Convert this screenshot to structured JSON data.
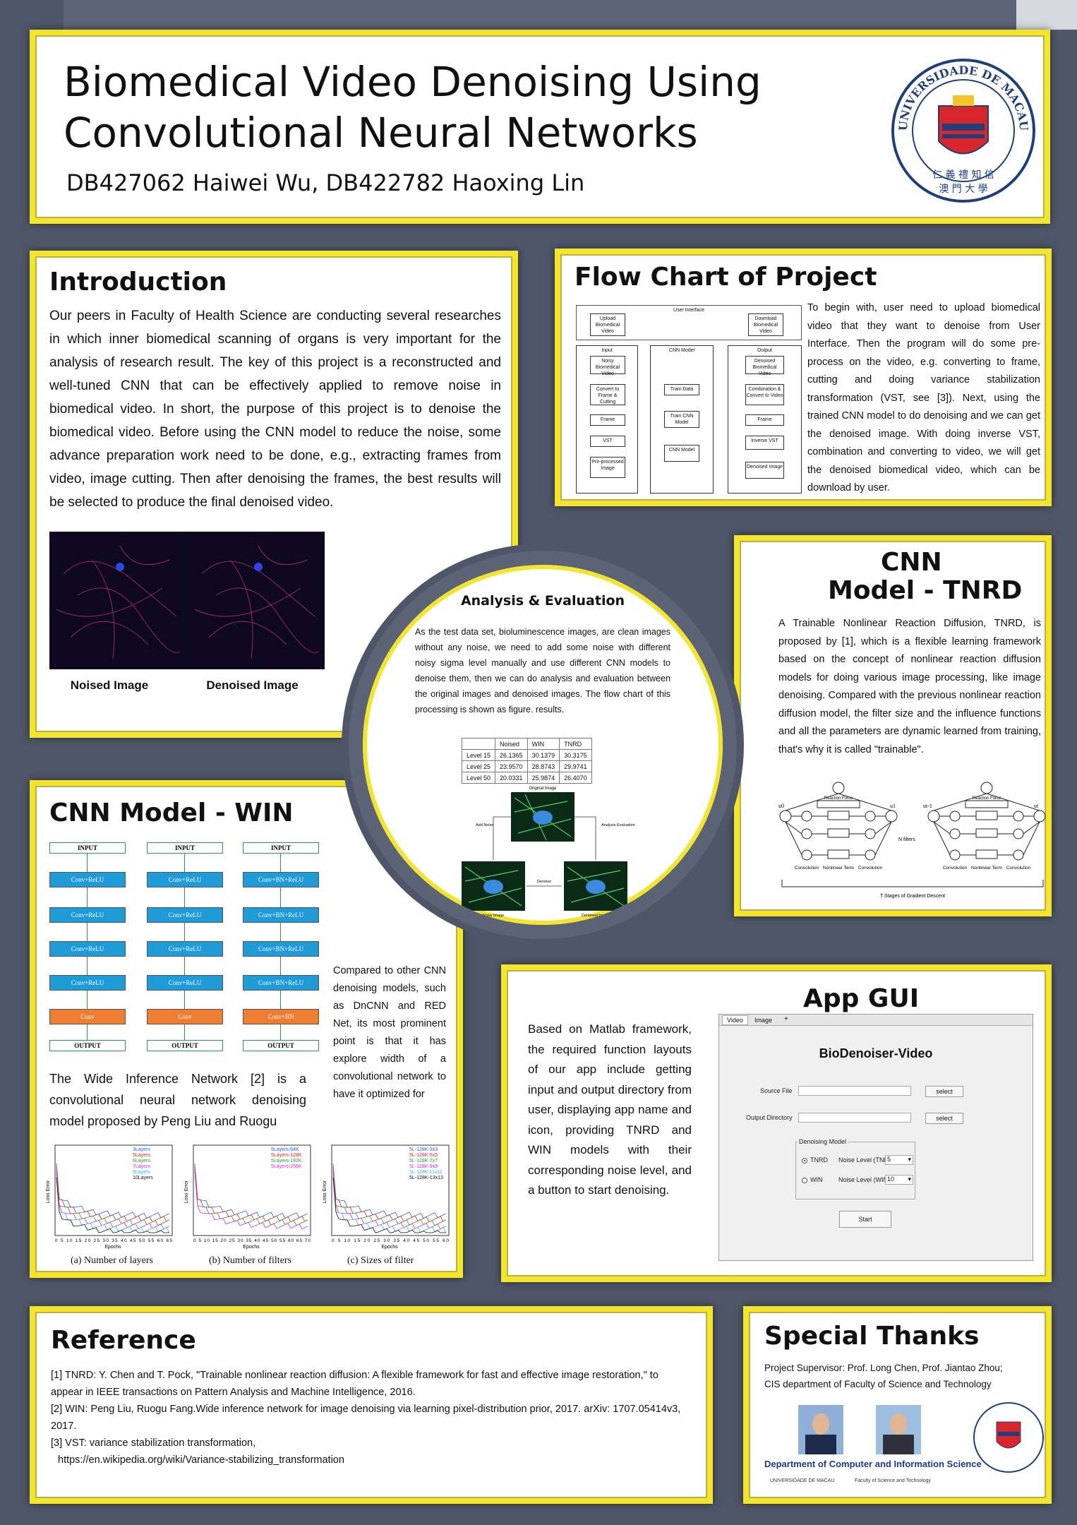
{
  "header": {
    "title_line1": "Biomedical Video Denoising Using",
    "title_line2": "Convolutional Neural Networks",
    "authors": "DB427062 Haiwei Wu, DB422782 Haoxing Lin",
    "logo_text_top": "UNIVERSIDADE DE MACAU",
    "logo_text_bottom": "澳 門 大 學",
    "logo_motto": "仁 義 禮 知 信"
  },
  "intro": {
    "heading": "Introduction",
    "text": "Our peers in Faculty of Health Science are conducting several researches in which inner biomedical scanning of organs is very important for the analysis of research result. The key of this project is a reconstructed and well-tuned CNN that can be effectively applied to remove noise in biomedical video. In short, the purpose of this project is to denoise the biomedical video. Before using the CNN model to reduce the noise, some advance preparation work need to be done, e.g., extracting frames from video, image cutting. Then after denoising the frames, the best results will be selected to produce the final denoised video.",
    "caption_noised": "Noised Image",
    "caption_denoised": "Denoised Image"
  },
  "flow": {
    "heading": "Flow Chart of Project",
    "text": "To begin with, user need to upload biomedical video that they want to denoise from User Interface. Then the program will do some pre-process on the video, e.g. converting to frame, cutting and doing variance stabilization transformation (VST, see [3]). Next, using the trained CNN model to do denoising and we can get the denoised image. With doing inverse VST, combination and converting to video, we will get the denoised biomedical video, which can be download by user.",
    "diagram": {
      "ui": "User Interface",
      "upload": "Upload Biomedical Video",
      "download": "Download Biomedical Video",
      "input": "Input",
      "cnn": "CNN Model",
      "output": "Output",
      "noisy": "Noisy Biomedical Video",
      "convert": "Convert to Frame & Cutting",
      "frame": "Frame",
      "vst": "VST",
      "pre": "Pre-processed Image",
      "train": "Train Data",
      "train_cnn": "Train CNN Model",
      "cnn_model": "CNN Model",
      "denoised_video": "Denoised Biomedical Video",
      "combination": "Combination & Convert to Video",
      "frame2": "Frame",
      "inverse": "Inverse VST",
      "denoised_image": "Denoised Image"
    }
  },
  "analysis": {
    "heading": "Analysis & Evaluation",
    "text": "As the test data set, bioluminescence images, are clean images without any noise, we need to add some noise with different noisy sigma level manually and use different CNN models to denoise them, then we can do analysis and evaluation between the original images and denoised images. The flow chart of this processing is shown as figure. results.",
    "table": {
      "headers": [
        "",
        "Noised",
        "WIN",
        "TNRD"
      ],
      "rows": [
        [
          "Level 15",
          "26.1365",
          "30.1379",
          "30.3175"
        ],
        [
          "Level 25",
          "23.9570",
          "28.8743",
          "29.9741"
        ],
        [
          "Level 50",
          "20.0331",
          "25.9874",
          "26.4070"
        ]
      ]
    },
    "fig_original": "Original Image",
    "fig_add_noise": "Add Noise",
    "fig_analysis": "Analysis Evaluation",
    "fig_denoise": "Denoise",
    "fig_noisy": "Noisy Image",
    "fig_denoised": "Denoised Image"
  },
  "tnrd": {
    "heading1": "CNN",
    "heading2": "Model - TNRD",
    "text": "A Trainable Nonlinear Reaction Diffusion, TNRD, is proposed by [1], which is a flexible learning framework based on the concept of nonlinear reaction diffusion models for doing various image processing, like image denoising. Compared with the previous nonlinear reaction diffusion model, the filter size and the influence functions and all the parameters are dynamic learned from training, that's why it is called \"trainable\".",
    "diagram": {
      "reaction": "Reaction Force",
      "convolution": "Convolution",
      "nonlinear": "Nonlinear Term",
      "nfilters": "N filters",
      "stages": "T Stages of Gradient Descent",
      "u0": "u0",
      "u1": "u1",
      "ut1": "ut-1",
      "ut": "ut"
    }
  },
  "win": {
    "heading": "CNN Model - WIN",
    "text_a": "The Wide Inference Network [2] is a convolutional neural network denoising model proposed by Peng Liu and Ruogu",
    "text_b": "Compared to other CNN denoising models, such as DnCNN and RED Net, its most prominent point is that it has explore width of a convolutional network to have it optimized for",
    "columns": [
      [
        "INPUT",
        "Conv+ReLU",
        "Conv+ReLU",
        "Conv+ReLU",
        "Conv+ReLU",
        "Conv",
        "OUTPUT"
      ],
      [
        "INPUT",
        "Conv+ReLU",
        "Conv+ReLU",
        "Conv+ReLU",
        "Conv+ReLU",
        "Conv",
        "OUTPUT"
      ],
      [
        "INPUT",
        "Conv+BN+ReLU",
        "Conv+BN+ReLU",
        "Conv+BN+ReLU",
        "Conv+BN+ReLU",
        "Conv+BN",
        "OUTPUT"
      ]
    ],
    "charts": [
      {
        "caption": "(a) Number of layers",
        "legend": [
          "3Layers",
          "5Layers",
          "6Layers",
          "7Layers",
          "9Layers",
          "10Layers"
        ],
        "xticks": "0 5 10 15 20 25 30 35 40 45 50 55 60 65"
      },
      {
        "caption": "(b) Number of filters",
        "legend": [
          "5Layers-64K",
          "5Layers-128K",
          "5Layers-192K",
          "5Layers-256K"
        ],
        "xticks": "0 5 10 15 20 25 30 35 40 45 50 55 60 65 70"
      },
      {
        "caption": "(c) Sizes of filter",
        "legend": [
          "5L-128K-3x3",
          "5L-128K-5x5",
          "5L-128K-7x7",
          "5L-128K-9x9",
          "5L-128K-11x11",
          "5L-128K-13x13"
        ],
        "xticks": "0 5 10 15 20 25 30 35 40 45 50 55 60"
      }
    ],
    "xlabel": "Epochs",
    "ylabel": "Loss Error"
  },
  "app": {
    "heading": "App GUI",
    "text": "Based on Matlab framework, the required function layouts of our app include getting input and output directory from user, displaying app name and icon, providing TNRD and WIN models with their corresponding noise level, and a button to start denoising.",
    "gui": {
      "tab_video": "Video",
      "tab_image": "Image",
      "tab_plus": "+",
      "title": "BioDenoiser-Video",
      "source_file": "Source File",
      "output_dir": "Output Directory",
      "select": "select",
      "group": "Denoising Model",
      "tnrd": "TNRD",
      "win": "WIN",
      "noise_tnrd": "Noise Level (TNRD)",
      "noise_win": "Noise Level (WIN)",
      "tnrd_value": "5",
      "win_value": "10",
      "start": "Start"
    }
  },
  "reference": {
    "heading": "Reference",
    "items": [
      "[1] TNRD: Y. Chen and T. Pock, \"Trainable nonlinear reaction diffusion: A flexible framework for fast and effective image restoration,\" to appear in IEEE transactions on Pattern Analysis and Machine Intelligence, 2016.",
      "[2] WIN: Peng Liu, Ruogu Fang.Wide inference network for image denoising via learning pixel-distribution prior, 2017. arXiv: 1707.05414v3, 2017.",
      "[3] VST: variance stabilization transformation,",
      "https://en.wikipedia.org/wiki/Variance-stabilizing_transformation"
    ]
  },
  "thanks": {
    "heading": "Special Thanks",
    "line1": "Project Supervisor: Prof. Long Chen, Prof. Jiantao Zhou;",
    "line2": "CIS department of Faculty of Science and Technology",
    "dept": "Department of Computer and Information Science",
    "um_small": "UNIVERSIDADE DE MACAU",
    "fst_small": "Faculty of Science and Technology"
  }
}
